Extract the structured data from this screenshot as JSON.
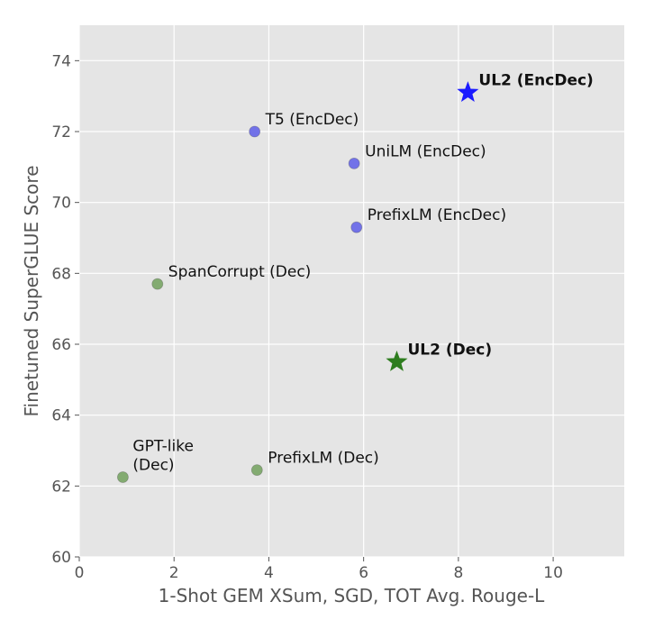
{
  "chart_data": {
    "type": "scatter",
    "xlabel": "1-Shot GEM XSum, SGD, TOT Avg. Rouge-L",
    "ylabel": "Finetuned SuperGLUE Score",
    "xlim": [
      0,
      11.5
    ],
    "ylim": [
      60,
      75
    ],
    "xticks": [
      "0",
      "2",
      "4",
      "6",
      "8",
      "10"
    ],
    "yticks": [
      "60",
      "62",
      "64",
      "66",
      "68",
      "70",
      "72",
      "74"
    ],
    "grid": true,
    "points": [
      {
        "label": "T5 (EncDec)",
        "x": 3.7,
        "y": 72.0,
        "marker": "circle",
        "color": "#6b6be8",
        "bold": false
      },
      {
        "label": "UniLM (EncDec)",
        "x": 5.8,
        "y": 71.1,
        "marker": "circle",
        "color": "#6b6be8",
        "bold": false
      },
      {
        "label": "PrefixLM (EncDec)",
        "x": 5.85,
        "y": 69.3,
        "marker": "circle",
        "color": "#6b6be8",
        "bold": false
      },
      {
        "label": "SpanCorrupt (Dec)",
        "x": 1.65,
        "y": 67.7,
        "marker": "circle",
        "color": "#7da86a",
        "bold": false
      },
      {
        "label": "GPT-like (Dec)",
        "x": 0.92,
        "y": 62.25,
        "marker": "circle",
        "color": "#7da86a",
        "bold": false
      },
      {
        "label": "PrefixLM (Dec)",
        "x": 3.75,
        "y": 62.45,
        "marker": "circle",
        "color": "#7da86a",
        "bold": false
      },
      {
        "label": "UL2 (EncDec)",
        "x": 8.2,
        "y": 73.1,
        "marker": "star",
        "color": "#1a1aff",
        "bold": true
      },
      {
        "label": "UL2 (Dec)",
        "x": 6.7,
        "y": 65.5,
        "marker": "star",
        "color": "#2e7d1f",
        "bold": true
      }
    ]
  }
}
